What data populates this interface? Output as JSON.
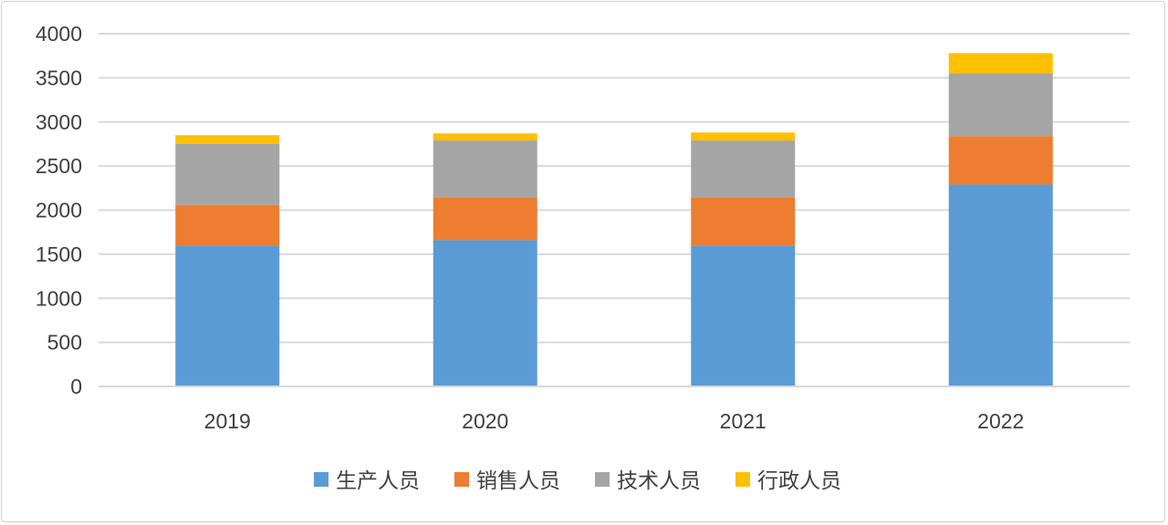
{
  "chart_data": {
    "type": "bar",
    "stacked": true,
    "categories": [
      "2019",
      "2020",
      "2021",
      "2022"
    ],
    "series": [
      {
        "name": "生产人员",
        "color": "#5b9bd5",
        "values": [
          1600,
          1660,
          1600,
          2290
        ]
      },
      {
        "name": "销售人员",
        "color": "#ed7d31",
        "values": [
          460,
          480,
          540,
          550
        ]
      },
      {
        "name": "技术人员",
        "color": "#a5a5a5",
        "values": [
          690,
          650,
          650,
          710
        ]
      },
      {
        "name": "行政人员",
        "color": "#ffc000",
        "values": [
          100,
          80,
          90,
          230
        ]
      }
    ],
    "ylim": [
      0,
      4000
    ],
    "yticks": [
      "0",
      "500",
      "1000",
      "1500",
      "2000",
      "2500",
      "3000",
      "3500",
      "4000"
    ],
    "grid": true,
    "legend_position": "bottom",
    "title": "",
    "xlabel": "",
    "ylabel": ""
  }
}
